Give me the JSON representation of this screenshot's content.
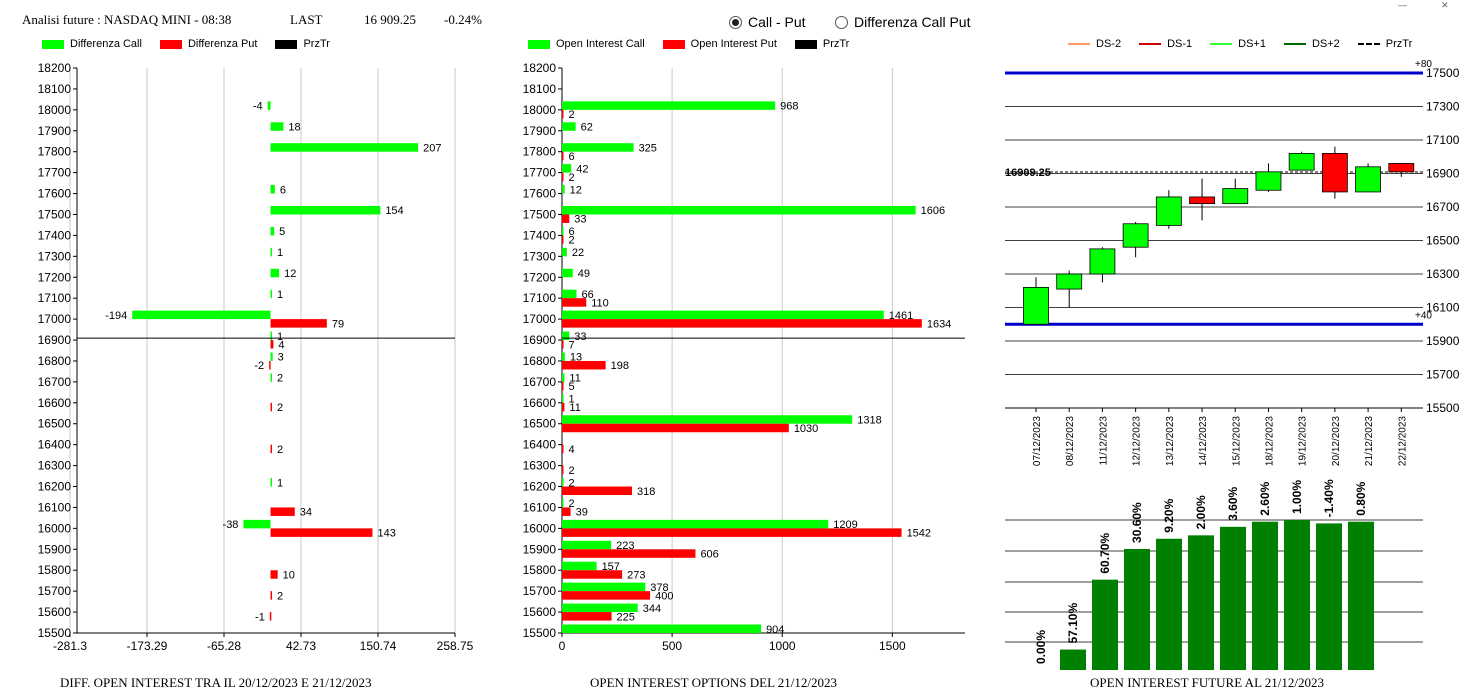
{
  "header": {
    "title": "Analisi future : NASDAQ MINI - 08:38",
    "last_label": "LAST",
    "last_value": "16 909.25",
    "change": "-0.24%"
  },
  "radio": {
    "option1": "Call - Put",
    "option2": "Differenza Call Put",
    "selected": "Call - Put"
  },
  "legends": {
    "left": [
      "Differenza Call",
      "Differenza Put",
      "PrzTr"
    ],
    "middle": [
      "Open Interest Call",
      "Open Interest Put",
      "PrzTr"
    ],
    "right": [
      "DS-2",
      "DS-1",
      "DS+1",
      "DS+2",
      "PrzTr"
    ]
  },
  "colors": {
    "call": "#00ff00",
    "put": "#ff0000",
    "bar": "#008000",
    "blue": "#0000cc",
    "ds_minus2": "#ff9966",
    "ds_minus1": "#cc0000",
    "ds_plus1": "#33ff33",
    "ds_plus2": "#006600"
  },
  "footers": {
    "left": "DIFF. OPEN INTEREST TRA IL 20/12/2023 E 21/12/2023",
    "middle": "OPEN INTEREST OPTIONS DEL 21/12/2023",
    "right": "OPEN INTEREST FUTURE AL 21/12/2023"
  },
  "chart_data": [
    {
      "type": "bar",
      "orientation": "horizontal",
      "categories": [
        18200,
        18100,
        18000,
        17900,
        17800,
        17700,
        17600,
        17500,
        17400,
        17300,
        17200,
        17100,
        17000,
        16900,
        16800,
        16700,
        16600,
        16500,
        16400,
        16300,
        16200,
        16100,
        16000,
        15900,
        15800,
        15700,
        15600,
        15500
      ],
      "series": [
        {
          "name": "Differenza Call",
          "values": {
            "18000": -4,
            "17900": 18,
            "17800": 207,
            "17600": 6,
            "17500": 154,
            "17400": 5,
            "17300": 1,
            "17200": 12,
            "17100": 1,
            "17000": -194,
            "16900": 1,
            "16800": 3,
            "16700": 2,
            "16200": 1,
            "16000": -38
          }
        },
        {
          "name": "Differenza Put",
          "values": {
            "17000": 79,
            "16900": 4,
            "16800": -2,
            "16600": 2,
            "16400": 2,
            "16100": 34,
            "16000": 143,
            "15800": 10,
            "15700": 2,
            "15600": -1
          }
        }
      ],
      "xticks": [
        "-281.3",
        "-173.29",
        "-65.28",
        "42.73",
        "150.74",
        "258.75"
      ],
      "xlim": [
        -281.3,
        258.75
      ],
      "przTr": 16909.25
    },
    {
      "type": "bar",
      "orientation": "horizontal",
      "categories": [
        18200,
        18100,
        18000,
        17900,
        17800,
        17700,
        17600,
        17500,
        17400,
        17300,
        17200,
        17100,
        17000,
        16900,
        16800,
        16700,
        16600,
        16500,
        16400,
        16300,
        16200,
        16100,
        16000,
        15900,
        15800,
        15700,
        15600,
        15500
      ],
      "series": [
        {
          "name": "Open Interest Call",
          "values": {
            "18000": 968,
            "17900": 62,
            "17800": 325,
            "17700": 42,
            "17600": 12,
            "17500": 1606,
            "17400": 6,
            "17300": 22,
            "17200": 49,
            "17100": 66,
            "17000": 1461,
            "16900": 33,
            "16800": 13,
            "16700": 11,
            "16600": 1,
            "16500": 1318,
            "16200": 2,
            "16100": 2,
            "16000": 1209,
            "15900": 223,
            "15800": 157,
            "15700": 378,
            "15600": 344,
            "15500": 904
          }
        },
        {
          "name": "Open Interest Put",
          "values": {
            "18000": 2,
            "17800": 6,
            "17700": 2,
            "17500": 33,
            "17400": 2,
            "17100": 110,
            "17000": 1634,
            "16900": 7,
            "16800": 198,
            "16700": 5,
            "16600": 11,
            "16500": 1030,
            "16400": 4,
            "16300": 2,
            "16200": 318,
            "16100": 39,
            "16000": 1542,
            "15900": 606,
            "15800": 273,
            "15700": 400,
            "15600": 225
          }
        }
      ],
      "xticks": [
        "0",
        "500",
        "1000",
        "1500"
      ],
      "xlim": [
        0,
        1830
      ],
      "przTr": 16909.25
    },
    {
      "type": "candlestick",
      "dates": [
        "07/12/2023",
        "08/12/2023",
        "11/12/2023",
        "12/12/2023",
        "13/12/2023",
        "14/12/2023",
        "15/12/2023",
        "18/12/2023",
        "19/12/2023",
        "20/12/2023",
        "21/12/2023",
        "22/12/2023"
      ],
      "candles": [
        {
          "open": 16000,
          "close": 16220,
          "high": 16280,
          "low": 16000
        },
        {
          "open": 16210,
          "close": 16300,
          "high": 16320,
          "low": 16100
        },
        {
          "open": 16300,
          "close": 16450,
          "high": 16460,
          "low": 16250
        },
        {
          "open": 16460,
          "close": 16600,
          "high": 16610,
          "low": 16400
        },
        {
          "open": 16590,
          "close": 16760,
          "high": 16800,
          "low": 16570
        },
        {
          "open": 16760,
          "close": 16720,
          "high": 16870,
          "low": 16620
        },
        {
          "open": 16720,
          "close": 16810,
          "high": 16870,
          "low": 16720
        },
        {
          "open": 16800,
          "close": 16910,
          "high": 16960,
          "low": 16790
        },
        {
          "open": 16920,
          "close": 17020,
          "high": 17030,
          "low": 16920
        },
        {
          "open": 17020,
          "close": 16790,
          "high": 17060,
          "low": 16750
        },
        {
          "open": 16790,
          "close": 16940,
          "high": 16960,
          "low": 16790
        },
        {
          "open": 16960,
          "close": 16910,
          "high": 16960,
          "low": 16880
        }
      ],
      "yticks": [
        17500,
        17300,
        17100,
        16900,
        16700,
        16500,
        16300,
        16100,
        15900,
        15700,
        15500
      ],
      "ylim": [
        15500,
        17500
      ],
      "blue_lines": [
        17500,
        16000
      ],
      "blue_labels": [
        "+80",
        "+40"
      ],
      "last_label": "16909.25",
      "last": 16909.25
    },
    {
      "type": "bar",
      "values": [
        0.0,
        57.1,
        60.7,
        30.6,
        9.2,
        2.0,
        3.6,
        2.6,
        1.0,
        -1.4,
        0.8
      ],
      "labels": [
        "0.00%",
        "57.10%",
        "60.70%",
        "30.60%",
        "9.20%",
        "2.00%",
        "3.60%",
        "2.60%",
        "1.00%",
        "-1.40%",
        "0.80%"
      ],
      "relative_heights": [
        0.0,
        0.12,
        0.53,
        0.71,
        0.77,
        0.79,
        0.84,
        0.87,
        0.88,
        0.86,
        0.87
      ]
    }
  ]
}
